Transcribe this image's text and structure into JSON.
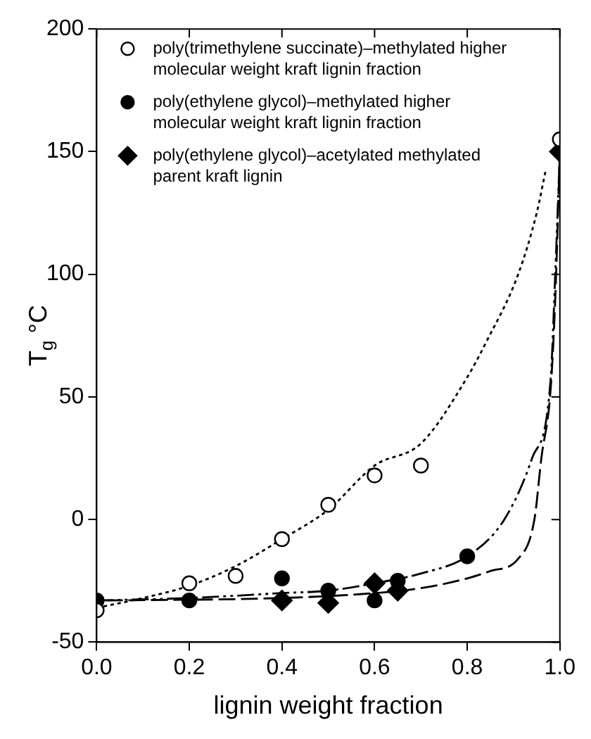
{
  "chart_data": {
    "type": "scatter",
    "xlabel": "lignin weight fraction",
    "ylabel": "T$_{g}$ °C",
    "xlim": [
      0,
      1
    ],
    "xticks": [
      {
        "value": 0,
        "label": "0.0"
      },
      {
        "value": 0.2,
        "label": "0.2"
      },
      {
        "value": 0.4,
        "label": "0.4"
      },
      {
        "value": 0.6,
        "label": "0.6"
      },
      {
        "value": 0.8,
        "label": "0.8"
      },
      {
        "value": 1,
        "label": "1.0"
      }
    ],
    "ylim": [
      -50,
      200
    ],
    "yticks": [
      -50,
      0,
      50,
      100,
      150,
      200
    ],
    "grid": false,
    "legend": "top left",
    "series": [
      {
        "name": "poly(trimethylene succinate)–methylated higher molecular weight kraft lignin fraction",
        "marker": "circle",
        "color": "#ffffff",
        "x": [
          0,
          0.2,
          0.3,
          0.4,
          0.5,
          0.6,
          0.7,
          1
        ],
        "values": [
          -37,
          -26,
          -23,
          -8,
          6,
          18,
          22,
          155
        ]
      },
      {
        "name": "poly(ethylene glycol)–methylated higher molecular weight kraft lignin fraction",
        "marker": "circle",
        "color": "#000000",
        "x": [
          0,
          0.2,
          0.4,
          0.5,
          0.6,
          0.65,
          0.8
        ],
        "values": [
          -33,
          -33,
          -24,
          -29,
          -33,
          -25,
          -15
        ]
      },
      {
        "name": "poly(ethylene glycol)–acetylated methylated parent kraft lignin",
        "marker": "diamond",
        "color": "#000000",
        "x": [
          0.4,
          0.5,
          0.6,
          0.65,
          1
        ],
        "values": [
          -33,
          -34,
          -26,
          -29,
          150
        ]
      },
      {
        "type": "line",
        "marker": "none",
        "line_style": "dotted",
        "color": "#000000",
        "x": [
          0,
          0.1,
          0.2,
          0.3,
          0.4,
          0.5,
          0.6,
          0.7,
          0.8,
          0.84,
          0.91,
          0.95,
          0.97
        ],
        "values": [
          -36,
          -32,
          -27,
          -19,
          -8,
          4,
          22,
          31,
          58,
          72,
          100,
          125,
          143
        ]
      },
      {
        "type": "line",
        "marker": "none",
        "line_style": "dashdot",
        "color": "#000000",
        "x": [
          0,
          0.2,
          0.4,
          0.5,
          0.6,
          0.7,
          0.8,
          0.88,
          0.94,
          0.98,
          0.99,
          1
        ],
        "values": [
          -33,
          -32,
          -30,
          -29,
          -26,
          -22,
          -15,
          0,
          25,
          57,
          100,
          150
        ]
      },
      {
        "type": "line",
        "marker": "none",
        "line_style": "dashed",
        "color": "#000000",
        "x": [
          0.02,
          0.4,
          0.6,
          0.7,
          0.8,
          0.85,
          0.91,
          0.945,
          0.96,
          0.98,
          0.99,
          1
        ],
        "values": [
          -33,
          -32,
          -30,
          -28,
          -24,
          -21,
          -16,
          0,
          25,
          53,
          90,
          150
        ]
      }
    ]
  }
}
